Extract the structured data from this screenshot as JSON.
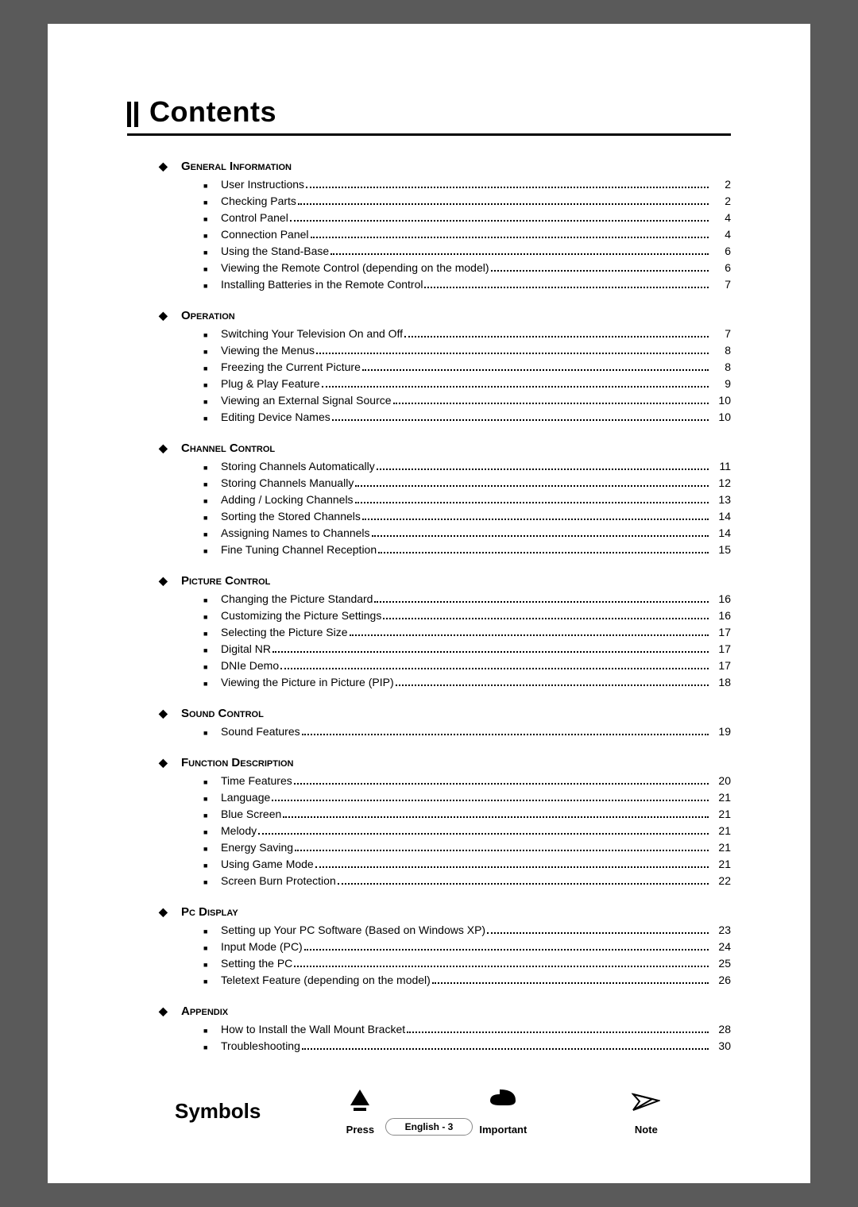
{
  "title": "Contents",
  "sections": [
    {
      "heading": "General Information",
      "items": [
        {
          "label": "User Instructions",
          "page": "2"
        },
        {
          "label": "Checking Parts",
          "page": "2"
        },
        {
          "label": "Control Panel",
          "page": "4"
        },
        {
          "label": "Connection Panel",
          "page": "4"
        },
        {
          "label": "Using the Stand-Base",
          "page": "6"
        },
        {
          "label": "Viewing the Remote Control (depending on the model)",
          "page": "6"
        },
        {
          "label": "Installing Batteries in the Remote Control",
          "page": "7"
        }
      ]
    },
    {
      "heading": "Operation",
      "items": [
        {
          "label": "Switching Your Television On and Off",
          "page": "7"
        },
        {
          "label": "Viewing the Menus",
          "page": "8"
        },
        {
          "label": "Freezing the Current Picture",
          "page": "8"
        },
        {
          "label": "Plug & Play Feature",
          "page": "9"
        },
        {
          "label": "Viewing an External Signal Source",
          "page": "10"
        },
        {
          "label": "Editing Device Names",
          "page": "10"
        }
      ]
    },
    {
      "heading": "Channel Control",
      "items": [
        {
          "label": "Storing Channels Automatically",
          "page": "11"
        },
        {
          "label": "Storing Channels Manually",
          "page": "12"
        },
        {
          "label": "Adding / Locking Channels",
          "page": "13"
        },
        {
          "label": "Sorting the Stored Channels",
          "page": "14"
        },
        {
          "label": "Assigning Names to Channels",
          "page": "14"
        },
        {
          "label": "Fine Tuning Channel Reception",
          "page": "15"
        }
      ]
    },
    {
      "heading": "Picture Control",
      "items": [
        {
          "label": "Changing the Picture Standard",
          "page": "16"
        },
        {
          "label": "Customizing the Picture Settings",
          "page": "16"
        },
        {
          "label": "Selecting the Picture Size",
          "page": "17"
        },
        {
          "label": "Digital NR",
          "page": "17"
        },
        {
          "label": "DNIe Demo",
          "page": "17"
        },
        {
          "label": "Viewing the Picture in Picture (PIP)",
          "page": "18"
        }
      ]
    },
    {
      "heading": "Sound Control",
      "items": [
        {
          "label": "Sound Features",
          "page": "19"
        }
      ]
    },
    {
      "heading": "Function Description",
      "items": [
        {
          "label": "Time Features",
          "page": "20"
        },
        {
          "label": "Language",
          "page": "21"
        },
        {
          "label": "Blue Screen",
          "page": "21"
        },
        {
          "label": "Melody",
          "page": "21"
        },
        {
          "label": "Energy Saving",
          "page": "21"
        },
        {
          "label": "Using Game Mode",
          "page": "21"
        },
        {
          "label": "Screen Burn Protection",
          "page": "22"
        }
      ]
    },
    {
      "heading": "Pc Display",
      "items": [
        {
          "label": "Setting up Your PC Software (Based on Windows XP)",
          "page": "23"
        },
        {
          "label": "Input Mode (PC)",
          "page": "24"
        },
        {
          "label": "Setting the PC",
          "page": "25"
        },
        {
          "label": "Teletext Feature (depending on the model)",
          "page": "26"
        }
      ]
    },
    {
      "heading": "Appendix",
      "items": [
        {
          "label": "How to Install the Wall Mount Bracket",
          "page": "28"
        },
        {
          "label": "Troubleshooting",
          "page": "30"
        }
      ]
    }
  ],
  "symbols": {
    "title": "Symbols",
    "items": [
      {
        "key": "press",
        "label": "Press"
      },
      {
        "key": "important",
        "label": "Important"
      },
      {
        "key": "note",
        "label": "Note"
      }
    ]
  },
  "footer": "English - 3"
}
